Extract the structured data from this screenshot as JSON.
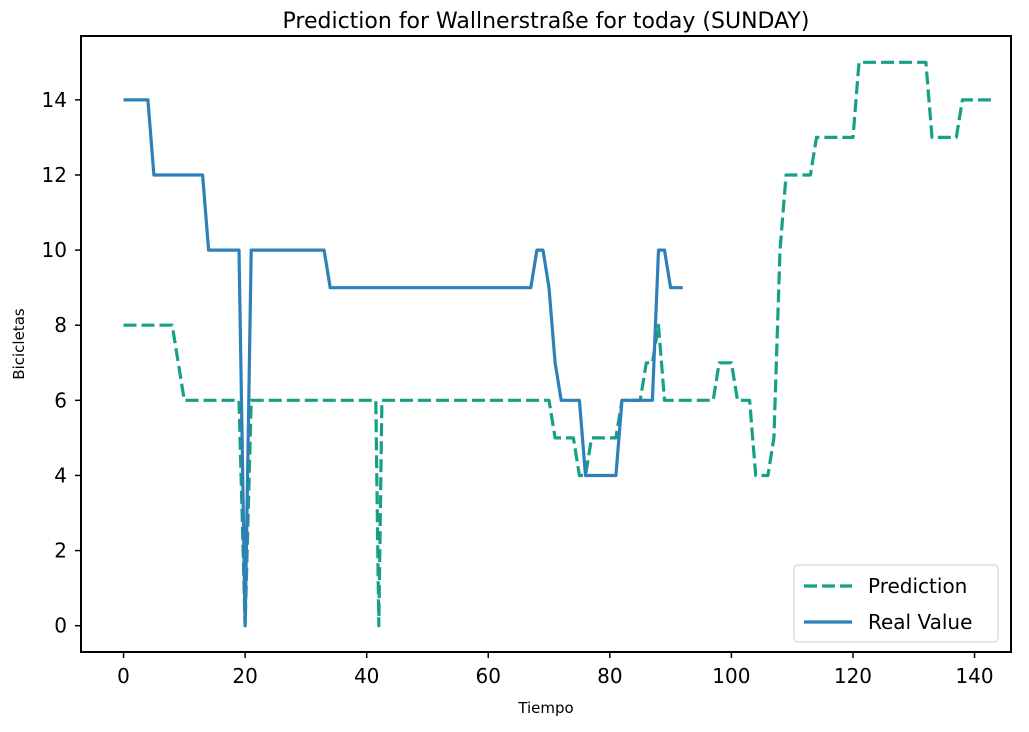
{
  "chart_data": {
    "type": "line",
    "title": "Prediction for Wallnerstraße for today (SUNDAY)",
    "xlabel": "Tiempo",
    "ylabel": "Bicicletas",
    "xlim": [
      -7,
      146
    ],
    "ylim": [
      -0.7,
      15.7
    ],
    "xticks": [
      0,
      20,
      40,
      60,
      80,
      100,
      120,
      140
    ],
    "yticks": [
      0,
      2,
      4,
      6,
      8,
      10,
      12,
      14
    ],
    "grid": false,
    "legend_position": "lower-right",
    "series": [
      {
        "name": "Prediction",
        "style": "dashed",
        "color": "#16a085",
        "points": [
          [
            0,
            8
          ],
          [
            8,
            8
          ],
          [
            10,
            6
          ],
          [
            19,
            6
          ],
          [
            19.5,
            3
          ],
          [
            20,
            0
          ],
          [
            20.5,
            3
          ],
          [
            21,
            6
          ],
          [
            41.5,
            6
          ],
          [
            42,
            0
          ],
          [
            42.5,
            6
          ],
          [
            70,
            6
          ],
          [
            71,
            5
          ],
          [
            74,
            5
          ],
          [
            75,
            4
          ],
          [
            76,
            4
          ],
          [
            77,
            5
          ],
          [
            81,
            5
          ],
          [
            82,
            6
          ],
          [
            85,
            6
          ],
          [
            86,
            7
          ],
          [
            87,
            7
          ],
          [
            88,
            8
          ],
          [
            89,
            6
          ],
          [
            97,
            6
          ],
          [
            98,
            7
          ],
          [
            100,
            7
          ],
          [
            101,
            6
          ],
          [
            103,
            6
          ],
          [
            104,
            4
          ],
          [
            106,
            4
          ],
          [
            107,
            5
          ],
          [
            108,
            10
          ],
          [
            109,
            12
          ],
          [
            113,
            12
          ],
          [
            114,
            13
          ],
          [
            120,
            13
          ],
          [
            121,
            15
          ],
          [
            132,
            15
          ],
          [
            133,
            13
          ],
          [
            137,
            13
          ],
          [
            138,
            14
          ],
          [
            143,
            14
          ]
        ]
      },
      {
        "name": "Real Value",
        "style": "solid",
        "color": "#2e80b9",
        "points": [
          [
            0,
            14
          ],
          [
            4,
            14
          ],
          [
            5,
            12
          ],
          [
            13,
            12
          ],
          [
            14,
            10
          ],
          [
            19,
            10
          ],
          [
            19.5,
            5
          ],
          [
            20,
            0
          ],
          [
            20.5,
            5
          ],
          [
            21,
            10
          ],
          [
            33,
            10
          ],
          [
            34,
            9
          ],
          [
            67,
            9
          ],
          [
            68,
            10
          ],
          [
            69,
            10
          ],
          [
            70,
            9
          ],
          [
            71,
            7
          ],
          [
            72,
            6
          ],
          [
            75,
            6
          ],
          [
            76,
            4
          ],
          [
            81,
            4
          ],
          [
            82,
            6
          ],
          [
            87,
            6
          ],
          [
            88,
            10
          ],
          [
            89,
            10
          ],
          [
            90,
            9
          ],
          [
            92,
            9
          ]
        ]
      }
    ]
  }
}
